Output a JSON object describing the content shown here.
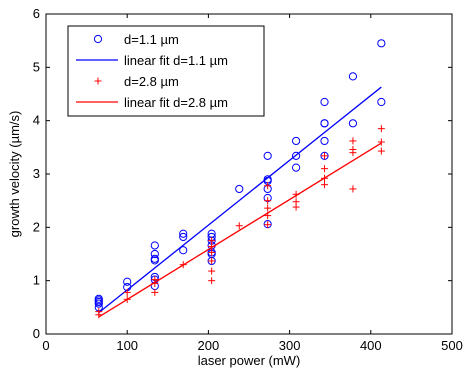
{
  "chart_data": {
    "type": "scatter",
    "title": "",
    "xlabel": "laser power (mW)",
    "ylabel": "growth velocity (µm/s)",
    "xlim": [
      0,
      500
    ],
    "ylim": [
      0,
      6
    ],
    "xticks": [
      0,
      100,
      200,
      300,
      400,
      500
    ],
    "yticks": [
      0,
      1,
      2,
      3,
      4,
      5,
      6
    ],
    "grid": false,
    "legend_position": "top-left",
    "series": [
      {
        "name": "d=1.1 µm",
        "kind": "points",
        "marker": "circle",
        "color": "#0000ff",
        "x": [
          65,
          65,
          65,
          65,
          65,
          100,
          100,
          134,
          134,
          134,
          134,
          134,
          134,
          134,
          169,
          169,
          169,
          204,
          204,
          204,
          204,
          204,
          204,
          204,
          238,
          273,
          273,
          273,
          273,
          273,
          273,
          308,
          308,
          308,
          343,
          343,
          343,
          343,
          343,
          378,
          378,
          413,
          413
        ],
        "y": [
          0.5,
          0.57,
          0.6,
          0.63,
          0.66,
          0.88,
          0.98,
          0.9,
          1.02,
          1.07,
          1.38,
          1.41,
          1.5,
          1.66,
          1.57,
          1.82,
          1.88,
          1.37,
          1.5,
          1.53,
          1.66,
          1.75,
          1.82,
          1.88,
          2.72,
          2.06,
          2.55,
          2.72,
          2.87,
          2.9,
          3.34,
          3.12,
          3.34,
          3.62,
          3.34,
          3.62,
          3.95,
          3.95,
          4.35,
          3.95,
          4.83,
          4.35,
          5.45
        ]
      },
      {
        "name": "linear fit d=1.1 µm",
        "kind": "line",
        "color": "#0000ff",
        "x": [
          65,
          413
        ],
        "y": [
          0.4,
          4.63
        ]
      },
      {
        "name": "d=2.8 µm",
        "kind": "points",
        "marker": "plus",
        "color": "#ff0000",
        "x": [
          65,
          65,
          100,
          100,
          134,
          134,
          134,
          169,
          204,
          204,
          204,
          204,
          204,
          204,
          238,
          273,
          273,
          273,
          273,
          273,
          308,
          308,
          308,
          343,
          343,
          343,
          343,
          378,
          378,
          378,
          378,
          413,
          413,
          413
        ],
        "y": [
          0.36,
          0.42,
          0.65,
          0.78,
          0.78,
          0.95,
          1.02,
          1.3,
          1.0,
          1.18,
          1.37,
          1.53,
          1.64,
          1.75,
          2.03,
          2.05,
          2.22,
          2.36,
          2.5,
          2.78,
          2.38,
          2.48,
          2.62,
          2.8,
          2.92,
          3.1,
          3.34,
          2.72,
          3.4,
          3.46,
          3.62,
          3.43,
          3.6,
          3.85
        ]
      },
      {
        "name": "linear fit d=2.8 µm",
        "kind": "line",
        "color": "#ff0000",
        "x": [
          65,
          413
        ],
        "y": [
          0.32,
          3.58
        ]
      }
    ]
  }
}
